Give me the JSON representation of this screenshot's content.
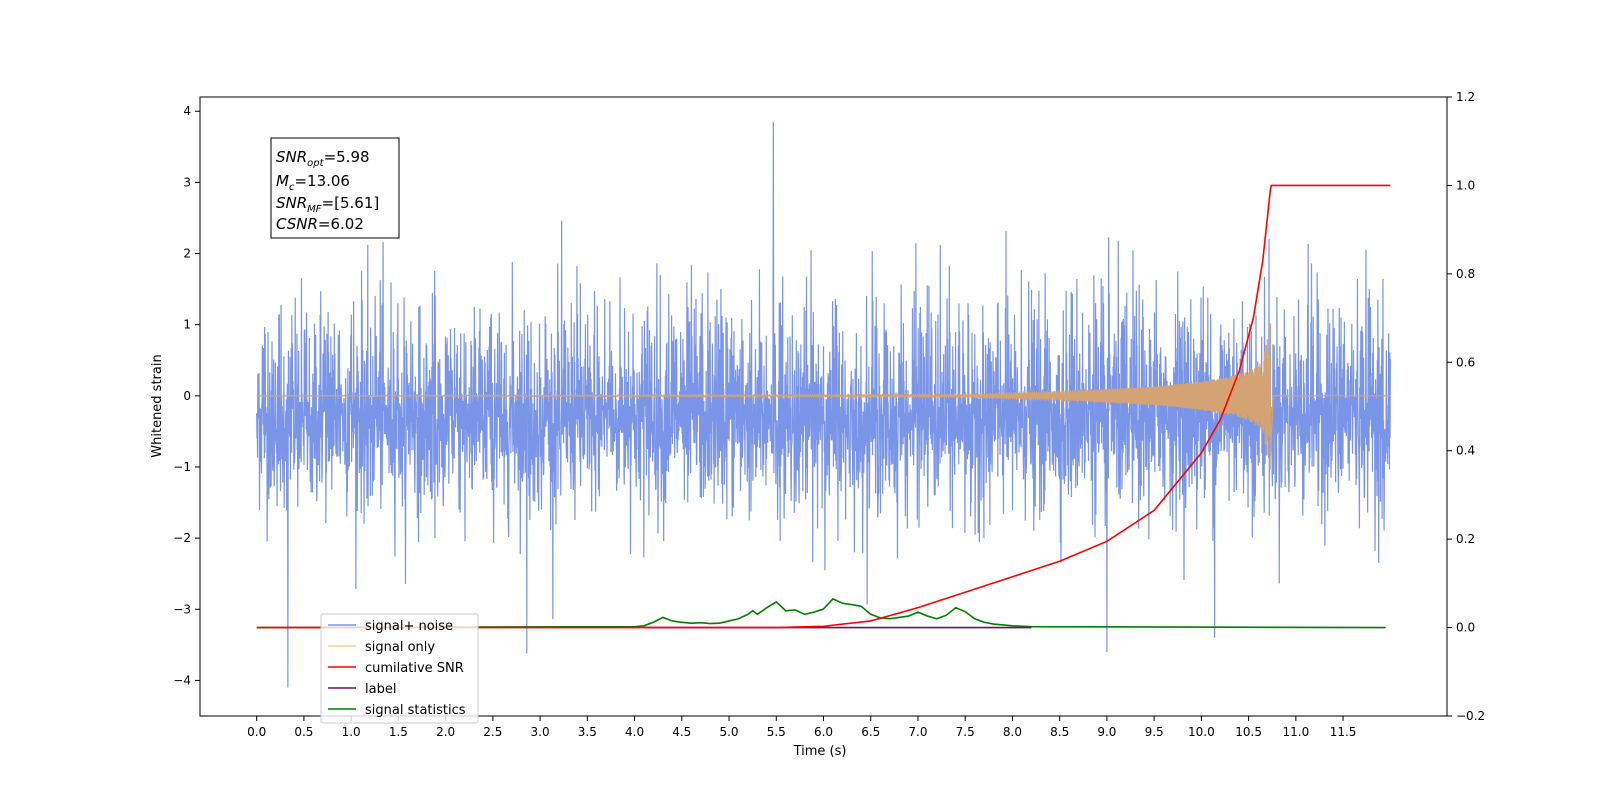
{
  "chart_data": {
    "type": "line",
    "xlabel": "Time (s)",
    "ylabel": "Whitened strain",
    "xlim": [
      -0.6,
      12.6
    ],
    "ylim": [
      -4.5,
      4.2
    ],
    "y2lim": [
      -0.2,
      1.2
    ],
    "x_ticks": [
      "0.0",
      "0.5",
      "1.0",
      "1.5",
      "2.0",
      "2.5",
      "3.0",
      "3.5",
      "4.0",
      "4.5",
      "5.0",
      "5.5",
      "6.0",
      "6.5",
      "7.0",
      "7.5",
      "8.0",
      "8.5",
      "9.0",
      "9.5",
      "10.0",
      "10.5",
      "11.0",
      "11.5"
    ],
    "y_ticks": [
      "4",
      "3",
      "2",
      "1",
      "0",
      "−1",
      "−2",
      "−3",
      "−4"
    ],
    "y2_ticks": [
      "1.2",
      "1.0",
      "0.8",
      "0.6",
      "0.4",
      "0.2",
      "0.0",
      "−0.2"
    ],
    "annotation": [
      "=5.98",
      "=13.06",
      "=[5.61]",
      "=6.02"
    ],
    "legend_position": "lower-left",
    "series": [
      {
        "name": "signal+ noise",
        "axis": "left",
        "color": "#7a95e8",
        "x_range": [
          0.0,
          12.0
        ],
        "envelope_max_est": 3.85,
        "envelope_min_est": -4.1,
        "peaks": [
          [
            0.33,
            -4.1
          ],
          [
            2.86,
            -3.62
          ],
          [
            5.47,
            3.85
          ],
          [
            9.0,
            -3.6
          ],
          [
            10.14,
            -3.4
          ]
        ]
      },
      {
        "name": "signal only",
        "axis": "left",
        "color": "#d4a373",
        "x_range": [
          0.0,
          12.0
        ],
        "chirp_peak_time": 10.73,
        "chirp_peak_amplitude": 1.1,
        "envelope": [
          [
            0.0,
            0.0
          ],
          [
            7.5,
            0.02
          ],
          [
            8.5,
            0.06
          ],
          [
            9.5,
            0.13
          ],
          [
            10.0,
            0.2
          ],
          [
            10.3,
            0.27
          ],
          [
            10.5,
            0.35
          ],
          [
            10.65,
            0.48
          ],
          [
            10.73,
            1.1
          ]
        ]
      },
      {
        "name": "cumilative SNR",
        "axis": "right",
        "color": "#ff0000",
        "x": [
          0.0,
          4.0,
          5.5,
          6.0,
          6.5,
          7.0,
          7.5,
          8.0,
          8.5,
          9.0,
          9.5,
          10.0,
          10.2,
          10.4,
          10.55,
          10.65,
          10.73,
          10.74,
          12.0
        ],
        "values": [
          0.0,
          0.0,
          0.0,
          0.003,
          0.015,
          0.045,
          0.08,
          0.115,
          0.15,
          0.195,
          0.265,
          0.395,
          0.47,
          0.58,
          0.7,
          0.83,
          0.99,
          1.0,
          1.0
        ]
      },
      {
        "name": "label",
        "axis": "right",
        "color": "#6a0f6a",
        "x": [
          4.1,
          8.2
        ],
        "values": [
          0.0,
          0.0
        ]
      },
      {
        "name": "signal statistics",
        "axis": "right",
        "color": "#008000",
        "x": [
          0.0,
          4.0,
          4.1,
          4.2,
          4.3,
          4.4,
          4.5,
          4.6,
          4.7,
          4.8,
          4.9,
          5.0,
          5.1,
          5.2,
          5.25,
          5.3,
          5.4,
          5.5,
          5.6,
          5.7,
          5.8,
          5.9,
          6.0,
          6.1,
          6.2,
          6.3,
          6.4,
          6.5,
          6.6,
          6.7,
          6.8,
          6.9,
          7.0,
          7.1,
          7.2,
          7.3,
          7.4,
          7.5,
          7.6,
          7.7,
          7.8,
          7.9,
          8.0,
          8.2,
          11.95
        ],
        "values": [
          0.0,
          0.002,
          0.004,
          0.012,
          0.023,
          0.015,
          0.012,
          0.01,
          0.011,
          0.009,
          0.01,
          0.015,
          0.02,
          0.03,
          0.038,
          0.03,
          0.045,
          0.058,
          0.038,
          0.04,
          0.03,
          0.035,
          0.042,
          0.065,
          0.055,
          0.052,
          0.048,
          0.03,
          0.022,
          0.02,
          0.023,
          0.026,
          0.035,
          0.026,
          0.02,
          0.028,
          0.045,
          0.036,
          0.02,
          0.012,
          0.008,
          0.006,
          0.004,
          0.002,
          0.0
        ]
      }
    ]
  }
}
